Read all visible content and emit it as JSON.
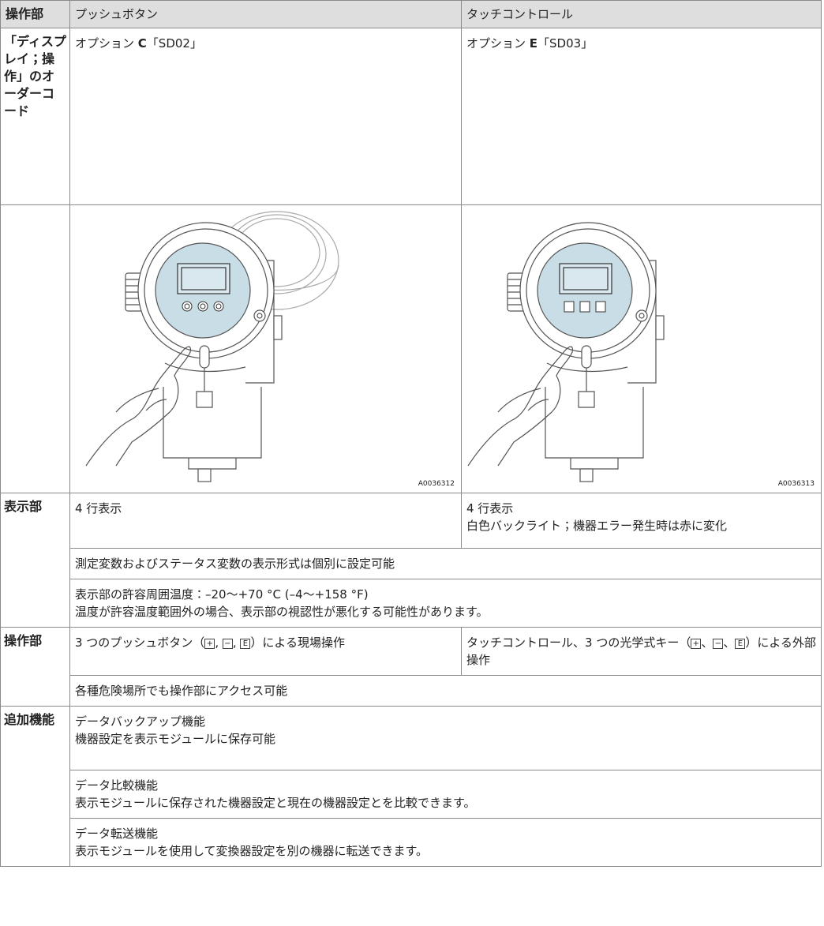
{
  "header": [
    "操作部",
    "プッシュボタン",
    "タッチコントロール"
  ],
  "order_code": {
    "label": "「ディスプレイ；操作」のオーダーコード",
    "push": [
      "オプション ",
      "C",
      "「SD02」"
    ],
    "touch": [
      "オプション ",
      "E",
      "「SD03」"
    ]
  },
  "images": [
    "A0036312",
    "A0036313"
  ],
  "display": {
    "label": "表示部",
    "push": [
      "4 行表示"
    ],
    "touch": [
      "4 行表示",
      "白色バックライト；機器エラー発生時は赤に変化"
    ],
    "format": "測定変数およびステータス変数の表示形式は個別に設定可能",
    "temperature": [
      "表示部の許容周囲温度：–20～+70 °C (–4～+158 °F)",
      "温度が許容温度範囲外の場合、表示部の視認性が悪化する可能性があります。"
    ]
  },
  "operation": {
    "label": "操作部",
    "push": {
      "before": "3 つのプッシュボタン（",
      "keys": [
        "+",
        "−",
        "E"
      ],
      "separator": ", ",
      "after": "）による現場操作"
    },
    "touch": {
      "before": "タッチコントロール、3 つの光学式キー（",
      "keys": [
        "+",
        "−",
        "E"
      ],
      "separator": "、",
      "after": "）による外部操作"
    },
    "hazard": "各種危険場所でも操作部にアクセス可能"
  },
  "functions": {
    "label": "追加機能",
    "items": [
      [
        "データバックアップ機能",
        "機器設定を表示モジュールに保存可能"
      ],
      [
        "データ比較機能",
        "表示モジュールに保存された機器設定と現在の機器設定とを比較できます。"
      ],
      [
        "データ転送機能",
        "表示モジュールを使用して変換器設定を別の機器に転送できます。"
      ]
    ]
  }
}
